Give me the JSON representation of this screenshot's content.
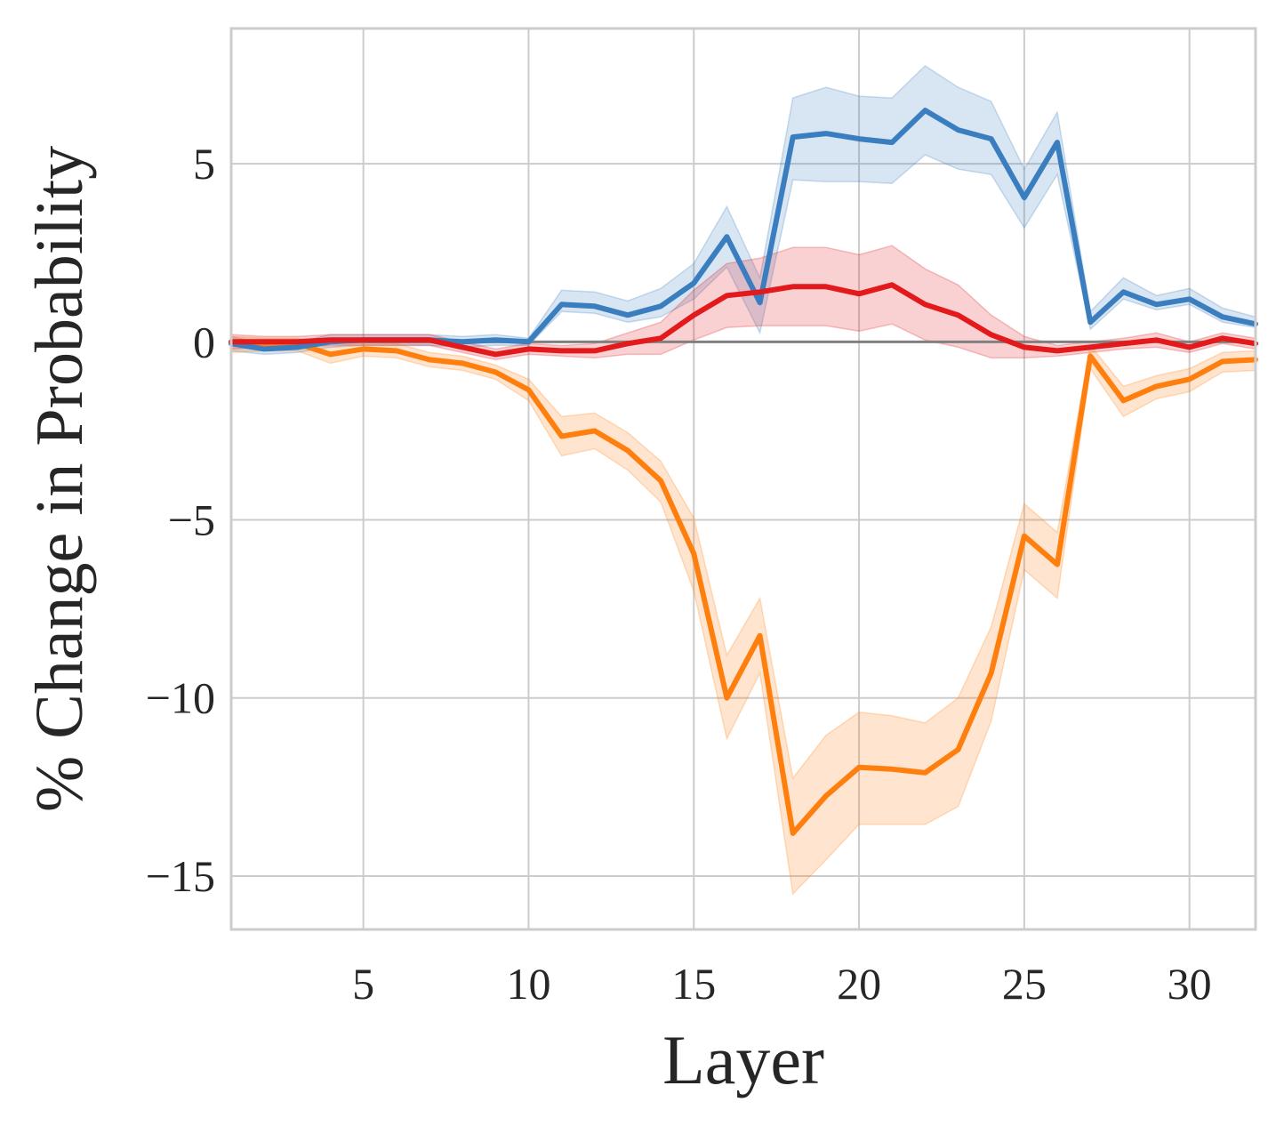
{
  "chart_data": {
    "type": "line",
    "title": "",
    "xlabel": "Layer",
    "ylabel": "% Change in Probability",
    "xlim": [
      1,
      32
    ],
    "ylim": [
      -16.5,
      8.8
    ],
    "xticks": [
      5,
      10,
      15,
      20,
      25,
      30
    ],
    "yticks": [
      5,
      0,
      -5,
      -10,
      -15
    ],
    "xtick_labels": [
      "5",
      "10",
      "15",
      "20",
      "25",
      "30"
    ],
    "ytick_labels": [
      "5",
      "0",
      "−5",
      "−10",
      "−15"
    ],
    "grid": true,
    "reference_line": {
      "y": 0,
      "color": "#808080"
    },
    "x": [
      1,
      2,
      3,
      4,
      5,
      6,
      7,
      8,
      9,
      10,
      11,
      12,
      13,
      14,
      15,
      16,
      17,
      18,
      19,
      20,
      21,
      22,
      23,
      24,
      25,
      26,
      27,
      28,
      29,
      30,
      31,
      32
    ],
    "series": [
      {
        "name": "blue",
        "color": "#3a7ebf",
        "values": [
          -0.05,
          -0.2,
          -0.15,
          0.0,
          0.05,
          0.05,
          0.05,
          0.0,
          0.05,
          0.0,
          1.05,
          1.0,
          0.75,
          1.0,
          1.65,
          2.95,
          1.1,
          5.75,
          5.85,
          5.7,
          5.6,
          6.5,
          5.95,
          5.7,
          4.05,
          5.6,
          0.55,
          1.4,
          1.05,
          1.2,
          0.7,
          0.5
        ],
        "lower": [
          -0.25,
          -0.35,
          -0.3,
          -0.15,
          -0.1,
          -0.1,
          -0.1,
          -0.15,
          -0.1,
          -0.1,
          0.85,
          0.8,
          0.55,
          0.7,
          1.2,
          2.1,
          0.25,
          4.55,
          4.5,
          4.5,
          4.45,
          5.25,
          4.85,
          4.7,
          3.2,
          4.7,
          0.35,
          1.2,
          0.9,
          1.05,
          0.55,
          0.4
        ],
        "upper": [
          0.15,
          -0.05,
          0.0,
          0.2,
          0.2,
          0.2,
          0.2,
          0.15,
          0.2,
          0.1,
          1.45,
          1.4,
          1.15,
          1.5,
          2.2,
          3.8,
          1.8,
          6.85,
          7.15,
          6.9,
          6.85,
          7.75,
          7.15,
          6.75,
          4.85,
          6.45,
          0.85,
          1.8,
          1.3,
          1.5,
          0.95,
          0.7
        ]
      },
      {
        "name": "red",
        "color": "#e31a1c",
        "values": [
          0.0,
          0.0,
          0.0,
          0.05,
          0.05,
          0.05,
          0.05,
          -0.15,
          -0.35,
          -0.2,
          -0.25,
          -0.25,
          -0.05,
          0.1,
          0.75,
          1.3,
          1.4,
          1.55,
          1.55,
          1.35,
          1.6,
          1.05,
          0.75,
          0.2,
          -0.15,
          -0.25,
          -0.15,
          -0.05,
          0.05,
          -0.15,
          0.1,
          -0.05
        ],
        "lower": [
          -0.2,
          -0.15,
          -0.15,
          -0.1,
          -0.1,
          -0.1,
          -0.1,
          -0.3,
          -0.5,
          -0.35,
          -0.4,
          -0.45,
          -0.35,
          -0.35,
          0.05,
          0.4,
          0.45,
          0.45,
          0.45,
          0.3,
          0.5,
          0.05,
          -0.15,
          -0.45,
          -0.45,
          -0.4,
          -0.3,
          -0.2,
          -0.15,
          -0.3,
          -0.05,
          -0.2
        ],
        "upper": [
          0.2,
          0.15,
          0.15,
          0.2,
          0.2,
          0.2,
          0.2,
          0.0,
          -0.2,
          -0.05,
          -0.1,
          -0.05,
          0.25,
          0.55,
          1.45,
          2.2,
          2.35,
          2.65,
          2.65,
          2.45,
          2.7,
          2.05,
          1.6,
          0.75,
          0.15,
          -0.1,
          0.0,
          0.1,
          0.25,
          0.0,
          0.25,
          0.1
        ]
      },
      {
        "name": "orange",
        "color": "#ff7f0e",
        "values": [
          -0.05,
          -0.05,
          -0.05,
          -0.35,
          -0.2,
          -0.25,
          -0.5,
          -0.6,
          -0.85,
          -1.35,
          -2.65,
          -2.5,
          -3.05,
          -3.9,
          -5.95,
          -10.0,
          -8.25,
          -13.8,
          -12.75,
          -11.95,
          -12.0,
          -12.1,
          -11.45,
          -9.3,
          -5.45,
          -6.25,
          -0.4,
          -1.65,
          -1.25,
          -1.05,
          -0.55,
          -0.5
        ],
        "lower": [
          -0.3,
          -0.25,
          -0.25,
          -0.6,
          -0.4,
          -0.45,
          -0.7,
          -0.8,
          -1.05,
          -1.65,
          -3.2,
          -3.0,
          -3.6,
          -4.5,
          -7.0,
          -11.15,
          -9.3,
          -15.5,
          -14.55,
          -13.55,
          -13.55,
          -13.55,
          -13.05,
          -10.65,
          -6.4,
          -7.2,
          -0.75,
          -2.1,
          -1.6,
          -1.4,
          -0.85,
          -0.8
        ],
        "upper": [
          0.15,
          0.1,
          0.1,
          -0.15,
          0.0,
          -0.05,
          -0.3,
          -0.4,
          -0.65,
          -1.05,
          -2.1,
          -2.0,
          -2.55,
          -3.35,
          -4.95,
          -8.8,
          -7.2,
          -12.25,
          -11.05,
          -10.4,
          -10.5,
          -10.7,
          -10.0,
          -8.0,
          -4.55,
          -5.35,
          -0.1,
          -1.25,
          -0.95,
          -0.75,
          -0.3,
          -0.25
        ]
      }
    ]
  }
}
